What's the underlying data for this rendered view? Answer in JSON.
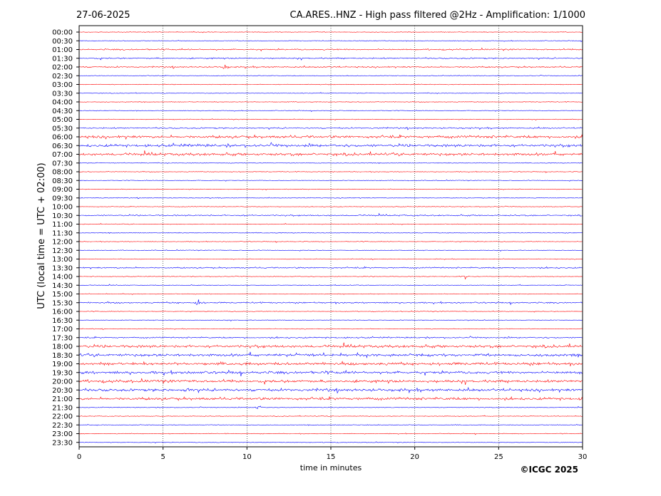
{
  "header": {
    "date": "27-06-2025",
    "title": "CA.ARES..HNZ - High pass filtered @2Hz - Amplification: 1/1000"
  },
  "copyright": "©ICGC 2025",
  "chart_data": {
    "type": "line",
    "title": "CA.ARES..HNZ - High pass filtered @2Hz - Amplification: 1/1000",
    "xlabel": "time in minutes",
    "ylabel": "UTC (local time = UTC + 02:00)",
    "xlim": [
      0,
      30
    ],
    "xticks": [
      0,
      5,
      10,
      15,
      20,
      25,
      30
    ],
    "grid": "vertical dotted at each x tick",
    "series_colors": [
      "#ff0000",
      "#0000ff"
    ],
    "rows": [
      "00:00",
      "00:30",
      "01:00",
      "01:30",
      "02:00",
      "02:30",
      "03:00",
      "03:30",
      "04:00",
      "04:30",
      "05:00",
      "05:30",
      "06:00",
      "06:30",
      "07:00",
      "07:30",
      "08:00",
      "08:30",
      "09:00",
      "09:30",
      "10:00",
      "10:30",
      "11:00",
      "11:30",
      "12:00",
      "12:30",
      "13:00",
      "13:30",
      "14:00",
      "14:30",
      "15:00",
      "15:30",
      "16:00",
      "16:30",
      "17:00",
      "17:30",
      "18:00",
      "18:30",
      "19:00",
      "19:30",
      "20:00",
      "20:30",
      "21:00",
      "21:30",
      "22:00",
      "22:30",
      "23:00",
      "23:30"
    ],
    "notable_events": [
      {
        "row": "02:00",
        "minute": 8.7,
        "color": "red"
      },
      {
        "row": "14:00",
        "minute": 23.0,
        "color": "red"
      },
      {
        "row": "15:30",
        "minute": 7.1,
        "color": "blue"
      },
      {
        "row": "20:30",
        "minute": 6.4,
        "color": "blue"
      },
      {
        "row": "21:30",
        "minute": 10.7,
        "color": "blue"
      }
    ]
  }
}
